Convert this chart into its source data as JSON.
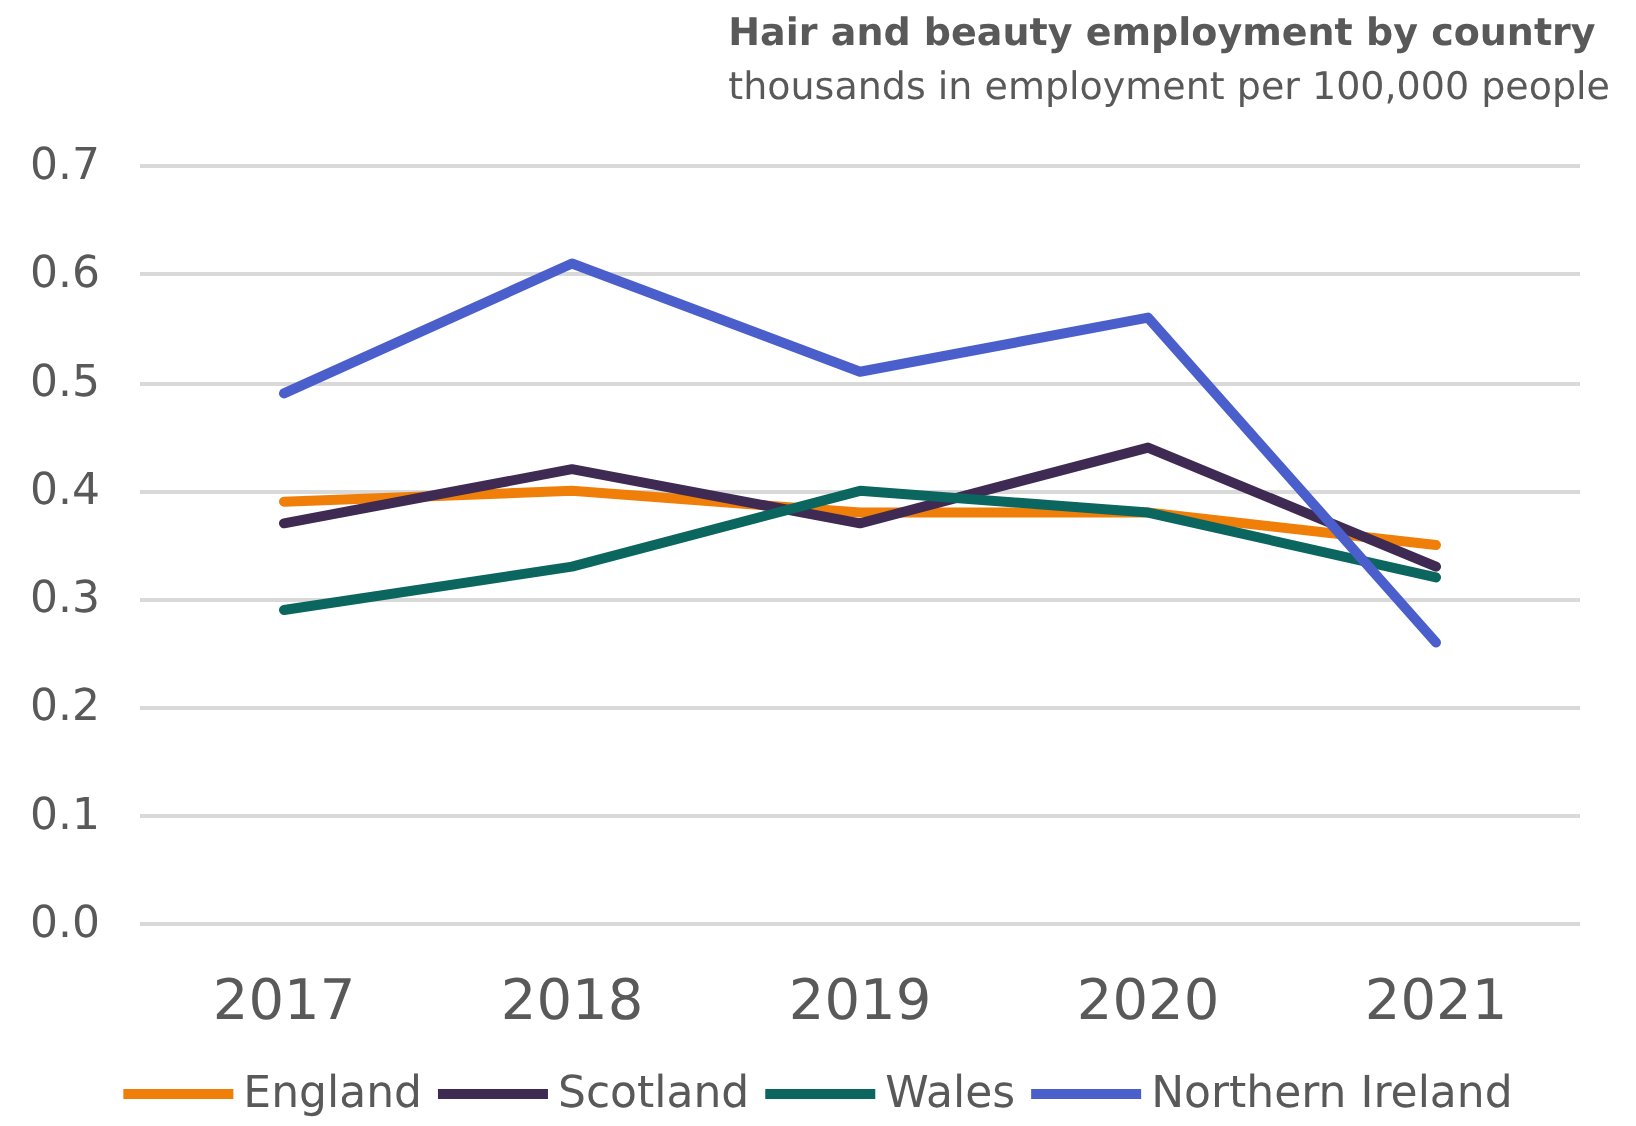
{
  "chart_data": {
    "type": "line",
    "title": "Hair and beauty employment by country",
    "subtitle": "thousands in employment per 100,000 people",
    "categories": [
      "2017",
      "2018",
      "2019",
      "2020",
      "2021"
    ],
    "series": [
      {
        "name": "England",
        "color": "#f07f09",
        "values": [
          0.39,
          0.4,
          0.38,
          0.38,
          0.35
        ]
      },
      {
        "name": "Scotland",
        "color": "#3e2a52",
        "values": [
          0.37,
          0.42,
          0.37,
          0.44,
          0.33
        ]
      },
      {
        "name": "Wales",
        "color": "#0b6660",
        "values": [
          0.29,
          0.33,
          0.4,
          0.38,
          0.32
        ]
      },
      {
        "name": "Northern Ireland",
        "color": "#4a5fcb",
        "values": [
          0.49,
          0.61,
          0.51,
          0.56,
          0.26
        ]
      }
    ],
    "ylim": [
      0,
      0.7
    ],
    "yticks": [
      {
        "value": 0,
        "label": "0.0"
      },
      0.1,
      0.2,
      0.3,
      0.4,
      0.5,
      0.6,
      0.7
    ],
    "grid": "y",
    "legend": "bottom",
    "marker": "none",
    "line_style": "solid"
  }
}
